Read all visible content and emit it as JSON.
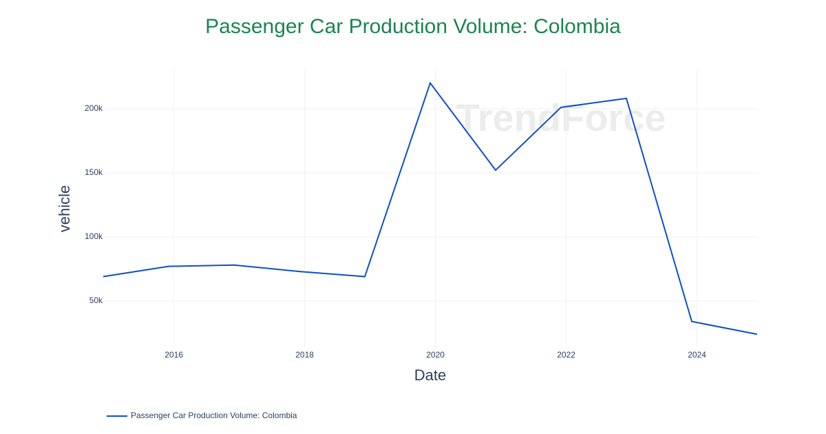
{
  "chart_data": {
    "type": "line",
    "title": "Passenger Car Production Volume: Colombia",
    "x_label": "Date",
    "y_label": "vehicle",
    "watermark": "TrendForce",
    "x": [
      2014.92,
      2015.92,
      2016.92,
      2017.92,
      2018.92,
      2019.92,
      2020.92,
      2021.92,
      2022.92,
      2023.92,
      2024.92
    ],
    "series": [
      {
        "name": "Passenger Car Production Volume: Colombia",
        "color": "#0a4fcc",
        "values": [
          69000,
          77000,
          78000,
          73000,
          69000,
          220000,
          152000,
          201000,
          208000,
          34000,
          24000
        ]
      }
    ],
    "xlim": [
      2014.92,
      2024.92
    ],
    "xticks": [
      2016,
      2018,
      2020,
      2022,
      2024
    ],
    "ylim": [
      13400,
      231000
    ],
    "yticks": [
      {
        "value": 50000,
        "label": "50k"
      },
      {
        "value": 100000,
        "label": "100k"
      },
      {
        "value": 150000,
        "label": "150k"
      },
      {
        "value": 200000,
        "label": "200k"
      }
    ],
    "grid": true,
    "legend": "bottom-left"
  }
}
